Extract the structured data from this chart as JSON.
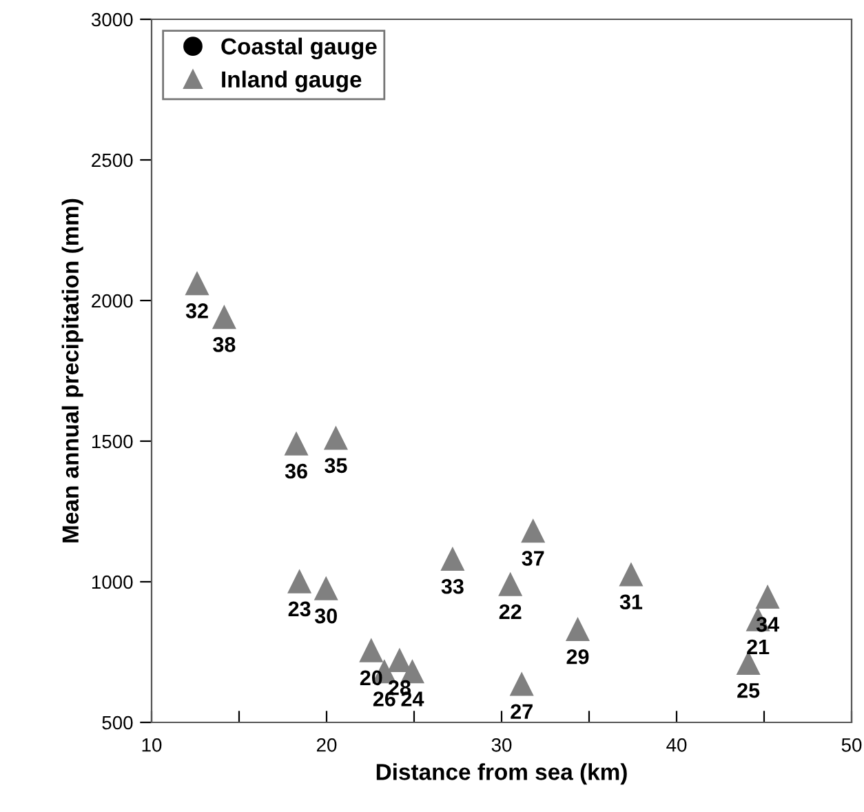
{
  "chart_data": {
    "type": "scatter",
    "xlabel": "Distance from sea (km)",
    "ylabel": "Mean annual precipitation (mm)",
    "xlim": [
      10,
      50
    ],
    "ylim": [
      500,
      3000
    ],
    "xticks": [
      10,
      {
        "value": 15,
        "label": null
      },
      20,
      {
        "value": 25,
        "label": null
      },
      30,
      {
        "value": 35,
        "label": null
      },
      40,
      {
        "value": 45,
        "label": null
      },
      50
    ],
    "yticks": [
      500,
      1000,
      1500,
      2000,
      2500,
      3000
    ],
    "grid": false,
    "legend": "top left",
    "series": [
      {
        "name": "Coastal gauge",
        "color": "#000000",
        "marker": "circle"
      },
      {
        "name": "Inland gauge",
        "color": "#808080",
        "marker": "triangle",
        "x": [
          12.6,
          14.15,
          18.27,
          20.53,
          18.45,
          19.97,
          22.55,
          23.3,
          24.17,
          24.9,
          27.2,
          31.8,
          30.5,
          37.4,
          34.35,
          31.15,
          45.2,
          44.65,
          44.1
        ],
        "values": [
          2060,
          1940,
          1490,
          1510,
          1000,
          975,
          755,
          680,
          720,
          680,
          1080,
          1180,
          990,
          1025,
          830,
          635,
          945,
          865,
          710
        ]
      }
    ],
    "annotations": [
      {
        "text": "32",
        "x": 12.6,
        "y": 2060
      },
      {
        "text": "38",
        "x": 14.15,
        "y": 1940
      },
      {
        "text": "36",
        "x": 18.27,
        "y": 1490
      },
      {
        "text": "35",
        "x": 20.53,
        "y": 1510
      },
      {
        "text": "23",
        "x": 18.45,
        "y": 1000
      },
      {
        "text": "30",
        "x": 19.97,
        "y": 975
      },
      {
        "text": "20",
        "x": 22.55,
        "y": 755
      },
      {
        "text": "26",
        "x": 23.3,
        "y": 680
      },
      {
        "text": "28",
        "x": 24.17,
        "y": 720
      },
      {
        "text": "24",
        "x": 24.9,
        "y": 680
      },
      {
        "text": "33",
        "x": 27.2,
        "y": 1080
      },
      {
        "text": "37",
        "x": 31.8,
        "y": 1180
      },
      {
        "text": "22",
        "x": 30.5,
        "y": 990
      },
      {
        "text": "31",
        "x": 37.4,
        "y": 1025
      },
      {
        "text": "29",
        "x": 34.35,
        "y": 830
      },
      {
        "text": "27",
        "x": 31.15,
        "y": 635
      },
      {
        "text": "34",
        "x": 45.2,
        "y": 945
      },
      {
        "text": "21",
        "x": 44.65,
        "y": 865
      },
      {
        "text": "25",
        "x": 44.1,
        "y": 710
      }
    ]
  }
}
